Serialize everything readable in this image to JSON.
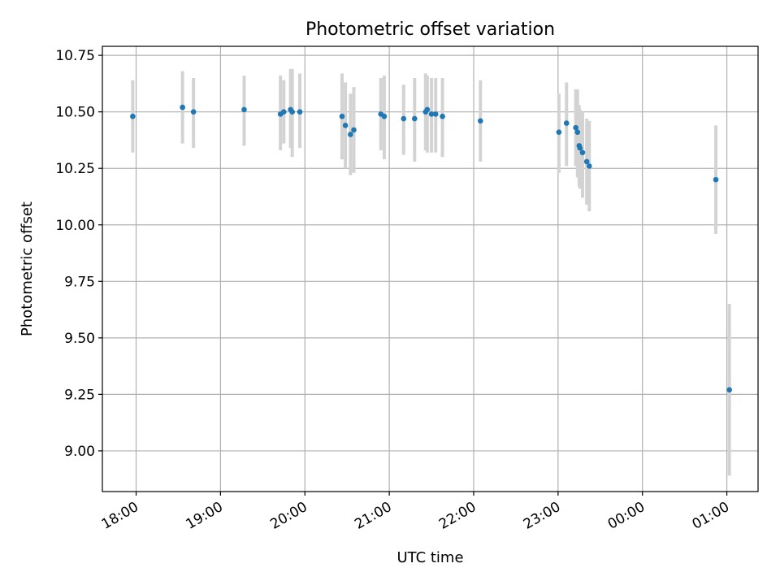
{
  "chart_data": {
    "type": "scatter",
    "title": "Photometric offset variation",
    "xlabel": "UTC time",
    "ylabel": "Photometric offset",
    "x_unit": "hours",
    "xlim": [
      17.6,
      25.37
    ],
    "ylim": [
      8.82,
      10.79
    ],
    "x_ticks": [
      {
        "value": 18,
        "label": "18:00"
      },
      {
        "value": 19,
        "label": "19:00"
      },
      {
        "value": 20,
        "label": "20:00"
      },
      {
        "value": 21,
        "label": "21:00"
      },
      {
        "value": 22,
        "label": "22:00"
      },
      {
        "value": 23,
        "label": "23:00"
      },
      {
        "value": 24,
        "label": "00:00"
      },
      {
        "value": 25,
        "label": "01:00"
      }
    ],
    "y_ticks": [
      {
        "value": 9.0,
        "label": "9.00"
      },
      {
        "value": 9.25,
        "label": "9.25"
      },
      {
        "value": 9.5,
        "label": "9.50"
      },
      {
        "value": 9.75,
        "label": "9.75"
      },
      {
        "value": 10.0,
        "label": "10.00"
      },
      {
        "value": 10.25,
        "label": "10.25"
      },
      {
        "value": 10.5,
        "label": "10.50"
      },
      {
        "value": 10.75,
        "label": "10.75"
      }
    ],
    "grid": true,
    "colors": {
      "point": "#1f77b4",
      "errorbar": "#d3d3d3",
      "grid": "#b0b0b0"
    },
    "points": [
      {
        "x": 17.96,
        "y": 10.48,
        "lo": 10.32,
        "hi": 10.64
      },
      {
        "x": 18.55,
        "y": 10.52,
        "lo": 10.36,
        "hi": 10.68
      },
      {
        "x": 18.68,
        "y": 10.5,
        "lo": 10.34,
        "hi": 10.65
      },
      {
        "x": 19.28,
        "y": 10.51,
        "lo": 10.35,
        "hi": 10.66
      },
      {
        "x": 19.71,
        "y": 10.49,
        "lo": 10.33,
        "hi": 10.66
      },
      {
        "x": 19.75,
        "y": 10.5,
        "lo": 10.36,
        "hi": 10.64
      },
      {
        "x": 19.83,
        "y": 10.51,
        "lo": 10.34,
        "hi": 10.69
      },
      {
        "x": 19.85,
        "y": 10.5,
        "lo": 10.3,
        "hi": 10.69
      },
      {
        "x": 19.94,
        "y": 10.5,
        "lo": 10.34,
        "hi": 10.67
      },
      {
        "x": 20.44,
        "y": 10.48,
        "lo": 10.29,
        "hi": 10.67
      },
      {
        "x": 20.48,
        "y": 10.44,
        "lo": 10.25,
        "hi": 10.63
      },
      {
        "x": 20.54,
        "y": 10.4,
        "lo": 10.22,
        "hi": 10.58
      },
      {
        "x": 20.58,
        "y": 10.42,
        "lo": 10.23,
        "hi": 10.61
      },
      {
        "x": 20.9,
        "y": 10.49,
        "lo": 10.33,
        "hi": 10.65
      },
      {
        "x": 20.94,
        "y": 10.48,
        "lo": 10.29,
        "hi": 10.66
      },
      {
        "x": 21.17,
        "y": 10.47,
        "lo": 10.31,
        "hi": 10.62
      },
      {
        "x": 21.3,
        "y": 10.47,
        "lo": 10.28,
        "hi": 10.65
      },
      {
        "x": 21.43,
        "y": 10.5,
        "lo": 10.33,
        "hi": 10.67
      },
      {
        "x": 21.45,
        "y": 10.51,
        "lo": 10.32,
        "hi": 10.66
      },
      {
        "x": 21.5,
        "y": 10.49,
        "lo": 10.32,
        "hi": 10.65
      },
      {
        "x": 21.55,
        "y": 10.49,
        "lo": 10.32,
        "hi": 10.65
      },
      {
        "x": 21.63,
        "y": 10.48,
        "lo": 10.3,
        "hi": 10.65
      },
      {
        "x": 22.08,
        "y": 10.46,
        "lo": 10.28,
        "hi": 10.64
      },
      {
        "x": 23.01,
        "y": 10.41,
        "lo": 10.23,
        "hi": 10.58
      },
      {
        "x": 23.1,
        "y": 10.45,
        "lo": 10.26,
        "hi": 10.63
      },
      {
        "x": 23.21,
        "y": 10.43,
        "lo": 10.26,
        "hi": 10.6
      },
      {
        "x": 23.23,
        "y": 10.41,
        "lo": 10.21,
        "hi": 10.6
      },
      {
        "x": 23.25,
        "y": 10.35,
        "lo": 10.17,
        "hi": 10.53
      },
      {
        "x": 23.26,
        "y": 10.34,
        "lo": 10.16,
        "hi": 10.51
      },
      {
        "x": 23.29,
        "y": 10.32,
        "lo": 10.12,
        "hi": 10.5
      },
      {
        "x": 23.34,
        "y": 10.28,
        "lo": 10.09,
        "hi": 10.47
      },
      {
        "x": 23.37,
        "y": 10.26,
        "lo": 10.06,
        "hi": 10.46
      },
      {
        "x": 24.87,
        "y": 10.2,
        "lo": 9.96,
        "hi": 10.44
      },
      {
        "x": 25.03,
        "y": 9.27,
        "lo": 8.89,
        "hi": 9.65
      }
    ]
  }
}
